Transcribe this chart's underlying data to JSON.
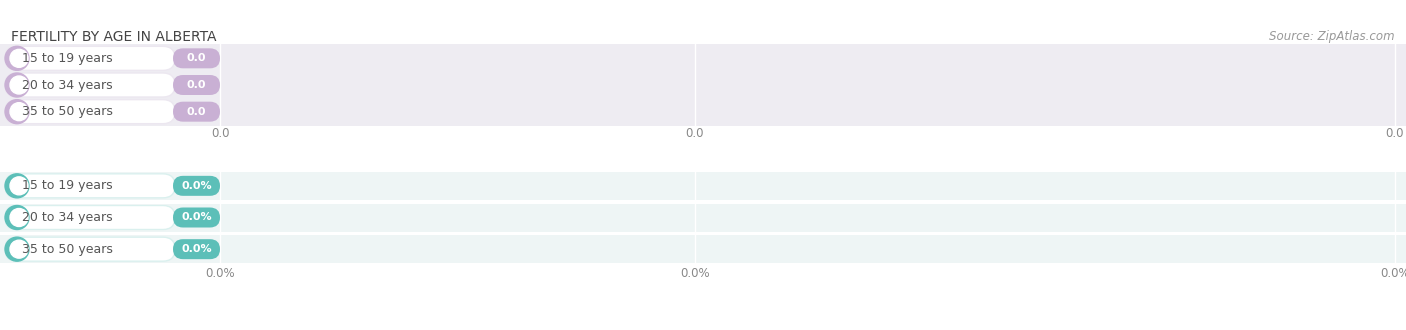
{
  "title": "FERTILITY BY AGE IN ALBERTA",
  "source": "Source: ZipAtlas.com",
  "top_chart": {
    "categories": [
      "15 to 19 years",
      "20 to 34 years",
      "35 to 50 years"
    ],
    "values": [
      0.0,
      0.0,
      0.0
    ],
    "bar_color": "#c9b0d4",
    "bg_color": "#ece7f0",
    "track_color": "#eeecf2",
    "value_format": "0.0",
    "xticklabels": [
      "0.0",
      "0.0",
      "0.0"
    ]
  },
  "bottom_chart": {
    "categories": [
      "15 to 19 years",
      "20 to 34 years",
      "35 to 50 years"
    ],
    "values": [
      0.0,
      0.0,
      0.0
    ],
    "bar_color": "#5cbfb8",
    "bg_color": "#daf0ee",
    "track_color": "#eef5f5",
    "value_format": "0.0%",
    "xticklabels": [
      "0.0%",
      "0.0%",
      "0.0%"
    ]
  },
  "fig_bg": "#ffffff",
  "row_bg_color": "#f5f5f8",
  "title_fontsize": 10,
  "source_fontsize": 8.5,
  "category_fontsize": 9,
  "value_fontsize": 8,
  "tick_fontsize": 8.5
}
